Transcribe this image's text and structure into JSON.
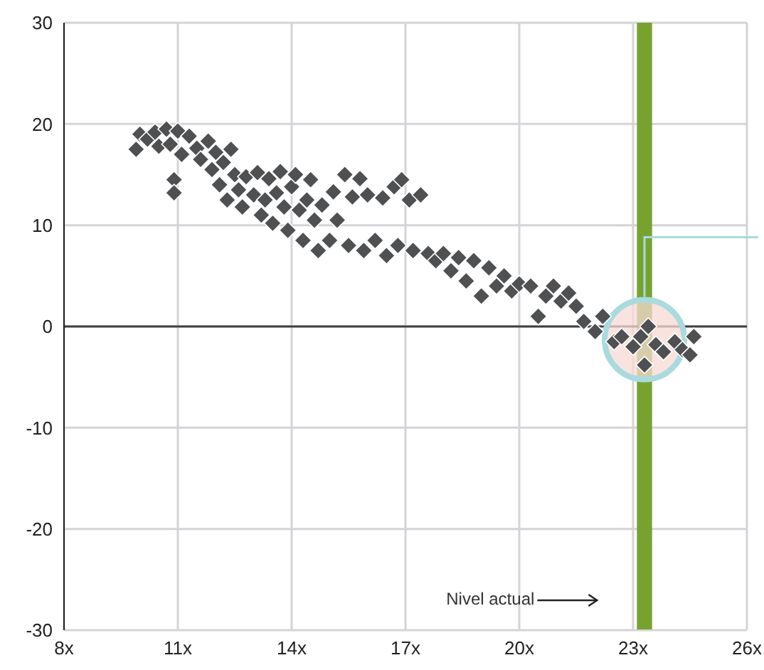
{
  "chart_data": {
    "type": "scatter",
    "marker": "diamond",
    "grid": true,
    "legend": false,
    "xlim": [
      8,
      26
    ],
    "xticks": [
      {
        "value": 8,
        "label": "8x"
      },
      {
        "value": 11,
        "label": "11x"
      },
      {
        "value": 14,
        "label": "14x"
      },
      {
        "value": 17,
        "label": "17x"
      },
      {
        "value": 20,
        "label": "20x"
      },
      {
        "value": 23,
        "label": "23x"
      },
      {
        "value": 26,
        "label": "26x"
      }
    ],
    "ylim": [
      -30,
      30
    ],
    "yticks": [
      -30,
      -20,
      -10,
      0,
      10,
      20,
      30
    ],
    "bands": [
      {
        "axis": "x",
        "from": 23.1,
        "to": 23.5,
        "color": "#77a22f"
      }
    ],
    "ref_lines": [
      {
        "axis": "y",
        "value": 0,
        "color": "#404040"
      }
    ],
    "annotations": [
      "Nivel actual"
    ],
    "series": [
      {
        "color": "#4f5052",
        "x": [
          9.9,
          10.0,
          10.2,
          10.4,
          10.5,
          10.7,
          10.8,
          11.0,
          11.1,
          10.9,
          10.9,
          11.3,
          11.5,
          11.6,
          11.8,
          11.9,
          12.0,
          12.1,
          12.2,
          12.3,
          12.4,
          12.5,
          12.6,
          12.7,
          12.8,
          13.0,
          13.1,
          13.2,
          13.3,
          13.4,
          13.5,
          13.6,
          13.7,
          13.8,
          13.9,
          14.0,
          14.1,
          14.2,
          14.3,
          14.4,
          14.5,
          14.6,
          14.7,
          14.8,
          15.0,
          15.1,
          15.2,
          15.4,
          15.5,
          15.6,
          15.8,
          15.9,
          16.0,
          16.2,
          16.4,
          16.5,
          16.7,
          16.8,
          16.9,
          17.1,
          17.2,
          17.4,
          17.6,
          17.8,
          18.0,
          18.2,
          18.4,
          18.6,
          18.8,
          19.0,
          19.2,
          19.4,
          19.6,
          19.8,
          20.0,
          20.3,
          20.5,
          20.7,
          20.9,
          21.1,
          21.3,
          21.5,
          21.7,
          22.0,
          22.2,
          22.5,
          22.7,
          23.0,
          23.2,
          23.4,
          23.3,
          23.6,
          23.8,
          24.1,
          24.3,
          24.6,
          24.5
        ],
        "values": [
          17.5,
          19,
          18.5,
          19.2,
          17.8,
          19.5,
          18,
          19.3,
          17,
          14.5,
          13.2,
          18.8,
          17.6,
          16.5,
          18.3,
          15.5,
          17.2,
          14,
          16.2,
          12.5,
          17.5,
          15,
          13.5,
          11.8,
          14.8,
          13,
          15.2,
          11,
          12.5,
          14.6,
          10.2,
          13.2,
          15.3,
          11.8,
          9.5,
          13.8,
          15,
          11.5,
          8.5,
          12.5,
          14.5,
          10.5,
          7.5,
          12,
          8.5,
          13.3,
          10.5,
          15,
          8,
          12.8,
          14.6,
          7.5,
          13,
          8.5,
          12.7,
          7,
          13.8,
          8,
          14.5,
          12.5,
          7.5,
          13,
          7.2,
          6.5,
          7.2,
          5.5,
          6.8,
          4.5,
          6.5,
          3,
          5.8,
          4,
          5,
          3.5,
          4.2,
          4,
          1,
          3,
          4,
          2.5,
          3.3,
          2,
          0.5,
          -0.5,
          1,
          -1.5,
          -1,
          -2,
          -1,
          0,
          -3.8,
          -1.8,
          -2.5,
          -1.5,
          -2.3,
          -1,
          -2.8
        ]
      }
    ]
  }
}
